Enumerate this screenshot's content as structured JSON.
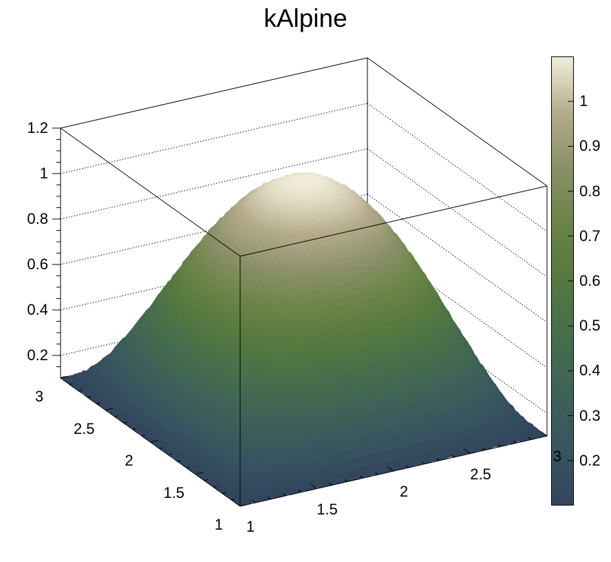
{
  "title": "kAlpine",
  "chart_data": {
    "type": "surface3d",
    "render_style": "ROOT SURF2 colored surface plot",
    "z_function": "z = 0.1 + (1-(x-2)^2) * (1-(y-2)^2)",
    "x_range": [
      1,
      3
    ],
    "y_range": [
      1,
      3
    ],
    "z_range": [
      0.1,
      1.1
    ],
    "z_axis_range": [
      0.1,
      1.2
    ],
    "peak_value": 1.1,
    "base_value": 0.1,
    "x_tick_labels": [
      "1",
      "1.5",
      "2",
      "2.5",
      "3"
    ],
    "y_tick_labels": [
      "1",
      "1.5",
      "2",
      "2.5",
      "3"
    ],
    "z_tick_labels": [
      "0.2",
      "0.4",
      "0.6",
      "0.8",
      "1",
      "1.2"
    ],
    "colorbar_tick_labels": [
      "0.2",
      "0.3",
      "0.4",
      "0.5",
      "0.6",
      "0.7",
      "0.8",
      "0.9",
      "1"
    ],
    "palette_name": "kAlpine",
    "palette_stops": [
      {
        "pos": 0.0,
        "color": "#32455e"
      },
      {
        "pos": 0.125,
        "color": "#385560"
      },
      {
        "pos": 0.25,
        "color": "#3e6258"
      },
      {
        "pos": 0.375,
        "color": "#466e4c"
      },
      {
        "pos": 0.5,
        "color": "#547840"
      },
      {
        "pos": 0.625,
        "color": "#6a8348"
      },
      {
        "pos": 0.75,
        "color": "#8a9068"
      },
      {
        "pos": 0.875,
        "color": "#b5ac8c"
      },
      {
        "pos": 1.0,
        "color": "#f2eed9"
      }
    ],
    "grid": "dotted z-level lines on back walls",
    "axis_color": "#000000",
    "background": "#ffffff"
  }
}
